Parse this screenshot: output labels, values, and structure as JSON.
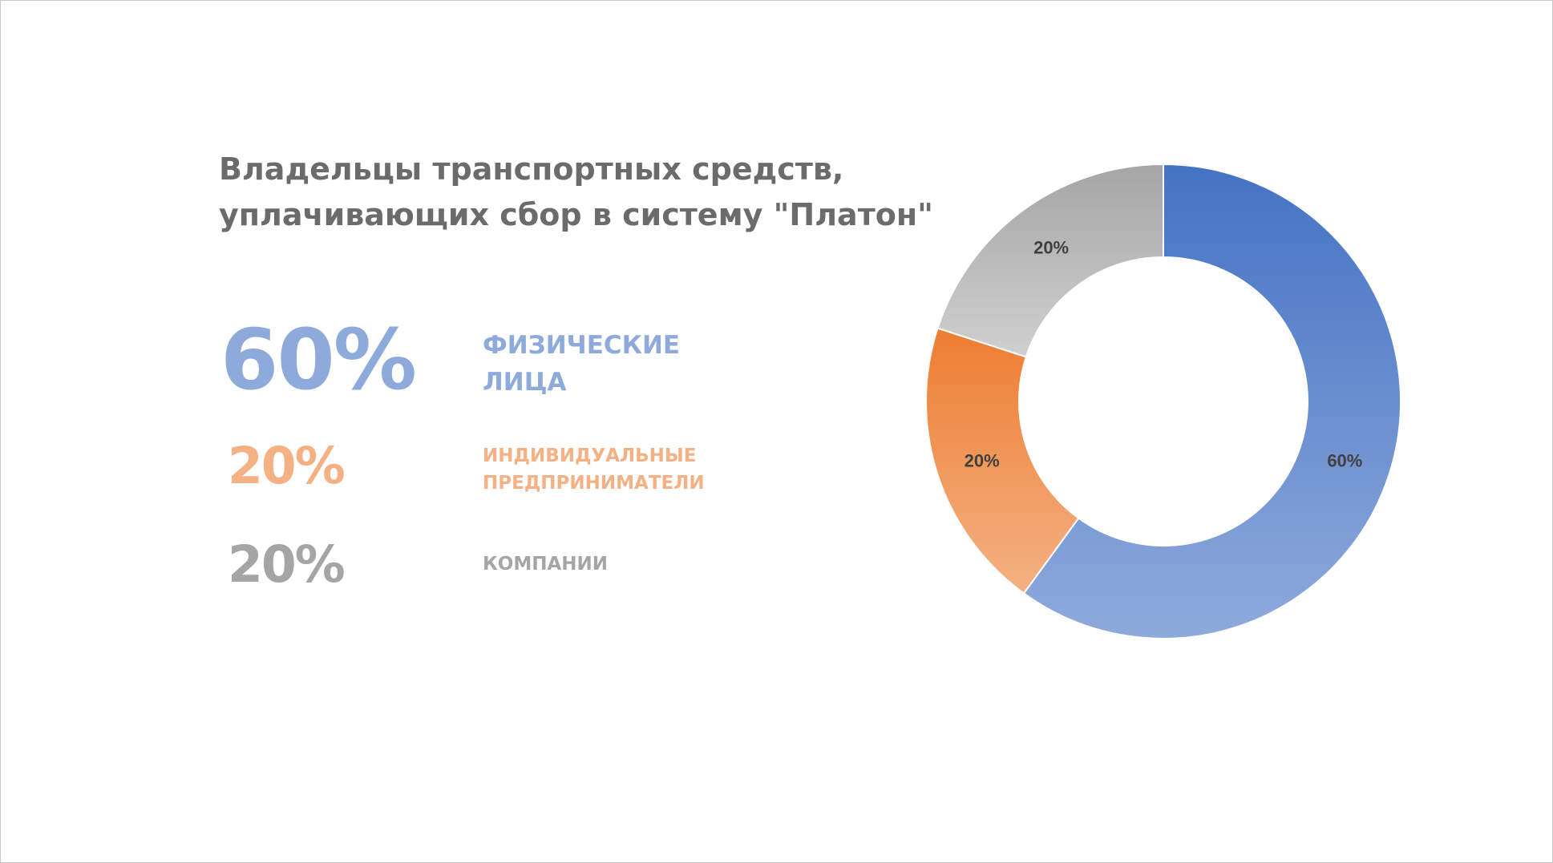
{
  "title": {
    "line1": "Владельцы транспортных средств,",
    "line2": "уплачивающих сбор в систему \"Платон\""
  },
  "stats": [
    {
      "pct": "60%",
      "label_line1": "ФИЗИЧЕСКИЕ",
      "label_line2": "ЛИЦА"
    },
    {
      "pct": "20%",
      "label_line1": "ИНДИВИДУАЛЬНЫЕ",
      "label_line2": "ПРЕДПРИНИМАТЕЛИ"
    },
    {
      "pct": "20%",
      "label_line1": "КОМПАНИИ",
      "label_line2": ""
    }
  ],
  "colors": {
    "blue": "#4472c4",
    "blue_light": "#8eaadb",
    "orange": "#ed7d31",
    "orange_light": "#f4b183",
    "gray": "#a5a5a5",
    "gray_light": "#d0d0d0",
    "title": "#6b6b6b"
  },
  "chart_data": {
    "type": "pie",
    "subtype": "donut",
    "title": "",
    "categories": [
      "Физические лица",
      "Индивидуальные предприниматели",
      "Компании"
    ],
    "values": [
      60,
      20,
      20
    ],
    "labels": [
      "60%",
      "20%",
      "20%"
    ],
    "start_angle_deg": 0,
    "direction": "clockwise",
    "legend": "none"
  }
}
